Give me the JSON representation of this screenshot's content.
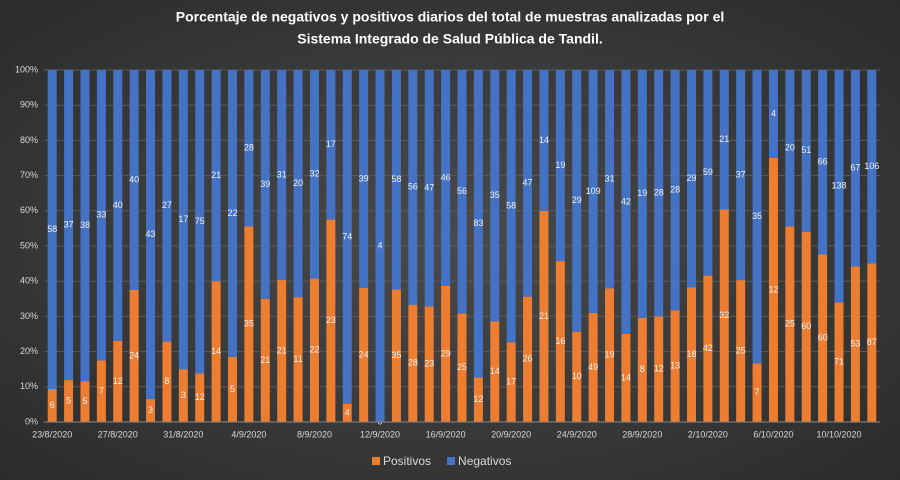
{
  "chart_data": {
    "type": "bar",
    "stacking": "percent",
    "title": [
      "Porcentaje  de  negativos  y  positivos  diarios  del  total  de  muestras  analizadas  por  el",
      "Sistema  Integrado  de  Salud  Pública  de  Tandil."
    ],
    "categories": [
      "23/8/2020",
      null,
      null,
      null,
      "27/8/2020",
      null,
      null,
      null,
      "31/8/2020",
      null,
      null,
      null,
      "4/9/2020",
      null,
      null,
      null,
      "8/9/2020",
      null,
      null,
      null,
      "12/9/2020",
      null,
      null,
      null,
      "16/9/2020",
      null,
      null,
      null,
      "20/9/2020",
      null,
      null,
      null,
      "24/9/2020",
      null,
      null,
      null,
      "28/9/2020",
      null,
      null,
      null,
      "2/10/2020",
      null,
      null,
      null,
      "6/10/2020",
      null,
      null,
      null,
      "10/10/2020",
      null,
      null
    ],
    "series": [
      {
        "name": "Positivos",
        "color": "#ed7d31",
        "values": [
          6,
          5,
          5,
          7,
          12,
          24,
          3,
          8,
          3,
          12,
          14,
          5,
          35,
          21,
          21,
          11,
          22,
          23,
          4,
          24,
          0,
          35,
          28,
          23,
          29,
          25,
          12,
          14,
          17,
          26,
          21,
          16,
          10,
          49,
          19,
          14,
          8,
          12,
          13,
          18,
          42,
          32,
          25,
          7,
          12,
          25,
          60,
          60,
          71,
          53,
          87
        ]
      },
      {
        "name": "Negativos",
        "color": "#4472c4",
        "values": [
          58,
          37,
          38,
          33,
          40,
          40,
          43,
          27,
          17,
          75,
          21,
          22,
          28,
          39,
          31,
          20,
          32,
          17,
          74,
          39,
          4,
          58,
          56,
          47,
          46,
          56,
          83,
          35,
          58,
          47,
          14,
          19,
          29,
          109,
          31,
          42,
          19,
          28,
          28,
          29,
          59,
          21,
          37,
          35,
          4,
          20,
          51,
          66,
          138,
          67,
          106
        ]
      }
    ],
    "ylim": [
      0,
      100
    ],
    "yticks": [
      {
        "value": 0,
        "label": "0%"
      },
      {
        "value": 10,
        "label": "10%"
      },
      {
        "value": 20,
        "label": "20%"
      },
      {
        "value": 30,
        "label": "30%"
      },
      {
        "value": 40,
        "label": "40%"
      },
      {
        "value": 50,
        "label": "50%"
      },
      {
        "value": 60,
        "label": "60%"
      },
      {
        "value": 70,
        "label": "70%"
      },
      {
        "value": 80,
        "label": "80%"
      },
      {
        "value": 90,
        "label": "90%"
      },
      {
        "value": 100,
        "label": "100%"
      }
    ],
    "grid": true,
    "legend": "bottom"
  }
}
